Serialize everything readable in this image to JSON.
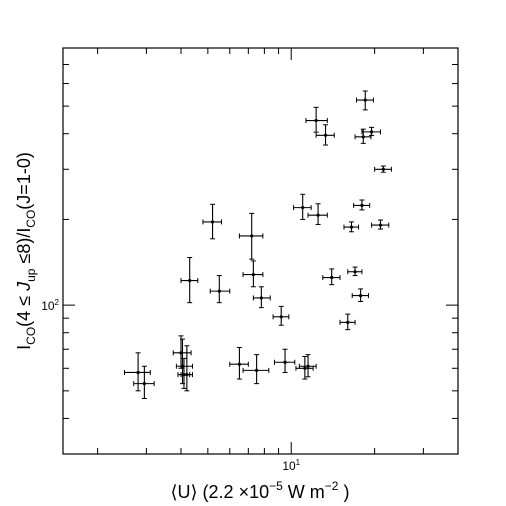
{
  "chart_data": {
    "type": "scatter",
    "title": "",
    "xlabel": "⟨U⟩ (2.2 ×10⁻⁵ W m⁻²)",
    "ylabel": "I_CO(4 ≤ J_up ≤ 8)/I_CO(J=1-0)",
    "x_scale": "log",
    "y_scale": "log",
    "xlim": [
      1.5,
      40
    ],
    "ylim": [
      30,
      800
    ],
    "x_tick_labels": [
      {
        "value": 10,
        "label": "10",
        "sup": "1"
      }
    ],
    "y_tick_labels": [
      {
        "value": 100,
        "label": "10",
        "sup": "2"
      }
    ],
    "grid": false,
    "points": [
      {
        "x": 2.8,
        "y": 58,
        "xerr_lo": 0.3,
        "xerr_hi": 0.3,
        "yerr_lo": 8,
        "yerr_hi": 10
      },
      {
        "x": 2.95,
        "y": 53,
        "xerr_lo": 0.25,
        "xerr_hi": 0.25,
        "yerr_lo": 6,
        "yerr_hi": 8
      },
      {
        "x": 4.0,
        "y": 68,
        "xerr_lo": 0.25,
        "xerr_hi": 0.35,
        "yerr_lo": 8,
        "yerr_hi": 10
      },
      {
        "x": 4.05,
        "y": 61,
        "xerr_lo": 0.2,
        "xerr_hi": 0.35,
        "yerr_lo": 8,
        "yerr_hi": 15
      },
      {
        "x": 4.1,
        "y": 57,
        "xerr_lo": 0.2,
        "xerr_hi": 0.2,
        "yerr_lo": 6,
        "yerr_hi": 8
      },
      {
        "x": 4.2,
        "y": 57,
        "xerr_lo": 0.2,
        "xerr_hi": 0.2,
        "yerr_lo": 7,
        "yerr_hi": 15
      },
      {
        "x": 4.3,
        "y": 122,
        "xerr_lo": 0.3,
        "xerr_hi": 0.3,
        "yerr_lo": 20,
        "yerr_hi": 25
      },
      {
        "x": 5.2,
        "y": 196,
        "xerr_lo": 0.4,
        "xerr_hi": 0.4,
        "yerr_lo": 25,
        "yerr_hi": 30
      },
      {
        "x": 5.5,
        "y": 112,
        "xerr_lo": 0.4,
        "xerr_hi": 0.5,
        "yerr_lo": 10,
        "yerr_hi": 15
      },
      {
        "x": 6.5,
        "y": 62,
        "xerr_lo": 0.5,
        "xerr_hi": 0.5,
        "yerr_lo": 7,
        "yerr_hi": 9
      },
      {
        "x": 7.2,
        "y": 175,
        "xerr_lo": 0.7,
        "xerr_hi": 0.7,
        "yerr_lo": 30,
        "yerr_hi": 35
      },
      {
        "x": 7.3,
        "y": 128,
        "xerr_lo": 0.6,
        "xerr_hi": 0.6,
        "yerr_lo": 12,
        "yerr_hi": 15
      },
      {
        "x": 7.5,
        "y": 59,
        "xerr_lo": 0.8,
        "xerr_hi": 0.8,
        "yerr_lo": 6,
        "yerr_hi": 8
      },
      {
        "x": 7.8,
        "y": 106,
        "xerr_lo": 0.5,
        "xerr_hi": 0.6,
        "yerr_lo": 8,
        "yerr_hi": 10
      },
      {
        "x": 9.2,
        "y": 91,
        "xerr_lo": 0.6,
        "xerr_hi": 0.6,
        "yerr_lo": 6,
        "yerr_hi": 8
      },
      {
        "x": 9.5,
        "y": 63,
        "xerr_lo": 0.8,
        "xerr_hi": 0.8,
        "yerr_lo": 5,
        "yerr_hi": 7
      },
      {
        "x": 11.0,
        "y": 220,
        "xerr_lo": 0.8,
        "xerr_hi": 0.8,
        "yerr_lo": 20,
        "yerr_hi": 25
      },
      {
        "x": 11.2,
        "y": 60,
        "xerr_lo": 0.8,
        "xerr_hi": 0.8,
        "yerr_lo": 5,
        "yerr_hi": 6
      },
      {
        "x": 11.5,
        "y": 61,
        "xerr_lo": 0.8,
        "xerr_hi": 0.8,
        "yerr_lo": 5,
        "yerr_hi": 6
      },
      {
        "x": 12.3,
        "y": 445,
        "xerr_lo": 1.0,
        "xerr_hi": 1.2,
        "yerr_lo": 40,
        "yerr_hi": 50
      },
      {
        "x": 12.5,
        "y": 207,
        "xerr_lo": 1.0,
        "xerr_hi": 1.0,
        "yerr_lo": 15,
        "yerr_hi": 20
      },
      {
        "x": 13.3,
        "y": 395,
        "xerr_lo": 1.0,
        "xerr_hi": 1.0,
        "yerr_lo": 30,
        "yerr_hi": 35
      },
      {
        "x": 14.0,
        "y": 125,
        "xerr_lo": 1.0,
        "xerr_hi": 1.0,
        "yerr_lo": 7,
        "yerr_hi": 9
      },
      {
        "x": 16.0,
        "y": 87,
        "xerr_lo": 1.0,
        "xerr_hi": 1.0,
        "yerr_lo": 5,
        "yerr_hi": 6
      },
      {
        "x": 16.5,
        "y": 188,
        "xerr_lo": 1.0,
        "xerr_hi": 1.0,
        "yerr_lo": 7,
        "yerr_hi": 8
      },
      {
        "x": 17.0,
        "y": 131,
        "xerr_lo": 1.0,
        "xerr_hi": 1.0,
        "yerr_lo": 4,
        "yerr_hi": 5
      },
      {
        "x": 17.8,
        "y": 108,
        "xerr_lo": 1.2,
        "xerr_hi": 1.2,
        "yerr_lo": 5,
        "yerr_hi": 6
      },
      {
        "x": 18.0,
        "y": 224,
        "xerr_lo": 1.2,
        "xerr_hi": 1.2,
        "yerr_lo": 8,
        "yerr_hi": 10
      },
      {
        "x": 18.2,
        "y": 390,
        "xerr_lo": 1.2,
        "xerr_hi": 1.2,
        "yerr_lo": 20,
        "yerr_hi": 25
      },
      {
        "x": 18.5,
        "y": 525,
        "xerr_lo": 1.3,
        "xerr_hi": 1.3,
        "yerr_lo": 40,
        "yerr_hi": 40
      },
      {
        "x": 19.5,
        "y": 406,
        "xerr_lo": 1.5,
        "xerr_hi": 1.5,
        "yerr_lo": 12,
        "yerr_hi": 15
      },
      {
        "x": 21.0,
        "y": 191,
        "xerr_lo": 1.5,
        "xerr_hi": 1.5,
        "yerr_lo": 6,
        "yerr_hi": 8
      },
      {
        "x": 21.5,
        "y": 300,
        "xerr_lo": 1.5,
        "xerr_hi": 1.5,
        "yerr_lo": 7,
        "yerr_hi": 8
      }
    ]
  }
}
